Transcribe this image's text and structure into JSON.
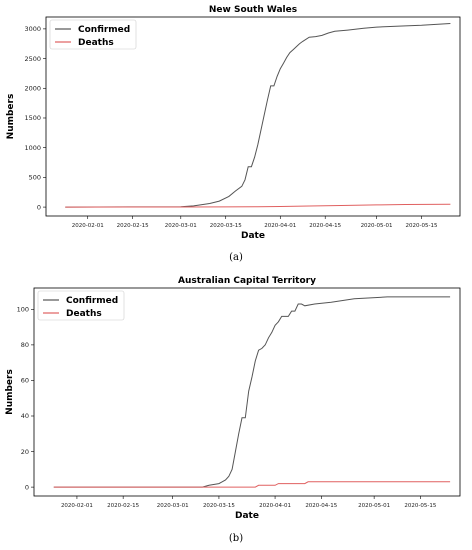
{
  "captions": [
    "(a)",
    "(b)"
  ],
  "chart_data": [
    {
      "type": "line",
      "title": "New South Wales",
      "xlabel": "Date",
      "ylabel": "Numbers",
      "x_ticks": [
        "2020-02-01",
        "2020-02-15",
        "2020-03-01",
        "2020-03-15",
        "2020-04-01",
        "2020-04-15",
        "2020-05-01",
        "2020-05-15"
      ],
      "y_ticks": [
        0,
        500,
        1000,
        1500,
        2000,
        2500,
        3000
      ],
      "xlim": [
        "2020-01-19",
        "2020-05-27"
      ],
      "ylim": [
        -150,
        3200
      ],
      "legend": "top-left",
      "series": [
        {
          "name": "Confirmed",
          "color": "#555555",
          "x": [
            "2020-01-25",
            "2020-02-15",
            "2020-03-01",
            "2020-03-05",
            "2020-03-10",
            "2020-03-13",
            "2020-03-16",
            "2020-03-18",
            "2020-03-20",
            "2020-03-21",
            "2020-03-22",
            "2020-03-23",
            "2020-03-24",
            "2020-03-25",
            "2020-03-26",
            "2020-03-27",
            "2020-03-28",
            "2020-03-29",
            "2020-03-30",
            "2020-03-31",
            "2020-04-01",
            "2020-04-02",
            "2020-04-03",
            "2020-04-04",
            "2020-04-05",
            "2020-04-06",
            "2020-04-07",
            "2020-04-08",
            "2020-04-10",
            "2020-04-12",
            "2020-04-14",
            "2020-04-16",
            "2020-04-18",
            "2020-04-22",
            "2020-04-27",
            "2020-05-01",
            "2020-05-10",
            "2020-05-15",
            "2020-05-24"
          ],
          "values": [
            0,
            3,
            5,
            20,
            60,
            100,
            180,
            270,
            350,
            460,
            680,
            680,
            840,
            1050,
            1300,
            1550,
            1800,
            2040,
            2040,
            2200,
            2330,
            2420,
            2520,
            2600,
            2650,
            2700,
            2750,
            2790,
            2860,
            2870,
            2890,
            2930,
            2960,
            2980,
            3010,
            3030,
            3050,
            3060,
            3090
          ]
        },
        {
          "name": "Deaths",
          "color": "#e06060",
          "x": [
            "2020-01-25",
            "2020-03-01",
            "2020-03-15",
            "2020-03-25",
            "2020-04-01",
            "2020-04-10",
            "2020-04-20",
            "2020-05-01",
            "2020-05-10",
            "2020-05-24"
          ],
          "values": [
            0,
            1,
            3,
            6,
            10,
            18,
            26,
            37,
            44,
            48
          ]
        }
      ]
    },
    {
      "type": "line",
      "title": "Australian Capital Territory",
      "xlabel": "Date",
      "ylabel": "Numbers",
      "x_ticks": [
        "2020-02-01",
        "2020-02-15",
        "2020-03-01",
        "2020-03-15",
        "2020-04-01",
        "2020-04-15",
        "2020-05-01",
        "2020-05-15"
      ],
      "y_ticks": [
        0,
        20,
        40,
        60,
        80,
        100
      ],
      "xlim": [
        "2020-01-19",
        "2020-05-27"
      ],
      "ylim": [
        -5,
        112
      ],
      "legend": "top-left",
      "series": [
        {
          "name": "Confirmed",
          "color": "#555555",
          "x": [
            "2020-01-25",
            "2020-03-10",
            "2020-03-12",
            "2020-03-15",
            "2020-03-16",
            "2020-03-17",
            "2020-03-18",
            "2020-03-19",
            "2020-03-20",
            "2020-03-21",
            "2020-03-22",
            "2020-03-23",
            "2020-03-24",
            "2020-03-25",
            "2020-03-26",
            "2020-03-27",
            "2020-03-28",
            "2020-03-29",
            "2020-03-30",
            "2020-03-31",
            "2020-04-01",
            "2020-04-02",
            "2020-04-03",
            "2020-04-05",
            "2020-04-06",
            "2020-04-07",
            "2020-04-08",
            "2020-04-09",
            "2020-04-10",
            "2020-04-13",
            "2020-04-18",
            "2020-04-25",
            "2020-05-05",
            "2020-05-24"
          ],
          "values": [
            0,
            0,
            1,
            2,
            3,
            4,
            6,
            10,
            20,
            30,
            39,
            39,
            54,
            62,
            71,
            77,
            78,
            80,
            84,
            87,
            91,
            93,
            96,
            96,
            99,
            99,
            103,
            103,
            102,
            103,
            104,
            106,
            107,
            107
          ]
        },
        {
          "name": "Deaths",
          "color": "#e06060",
          "x": [
            "2020-01-25",
            "2020-03-26",
            "2020-03-27",
            "2020-04-01",
            "2020-04-02",
            "2020-04-10",
            "2020-04-11",
            "2020-05-24"
          ],
          "values": [
            0,
            0,
            1,
            1,
            2,
            2,
            3,
            3
          ]
        }
      ]
    }
  ]
}
